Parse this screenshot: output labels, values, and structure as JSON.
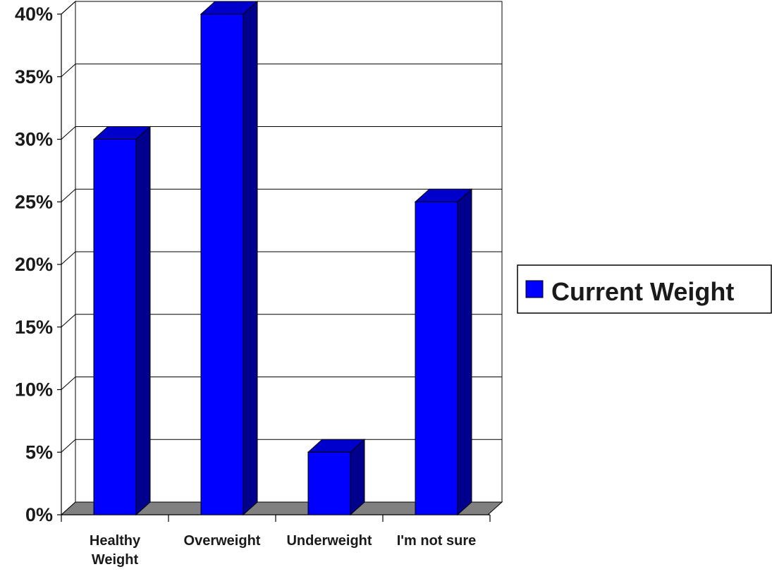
{
  "chart_data": {
    "type": "bar",
    "title": "",
    "xlabel": "",
    "ylabel": "",
    "categories": [
      "Healthy Weight",
      "Overweight",
      "Underweight",
      "I'm not sure"
    ],
    "category_lines": [
      [
        "Healthy",
        "Weight"
      ],
      [
        "Overweight"
      ],
      [
        "Underweight"
      ],
      [
        "I'm not sure"
      ]
    ],
    "series": [
      {
        "name": "Current Weight",
        "values": [
          30,
          40,
          5,
          25
        ]
      }
    ],
    "ylim": [
      0,
      40
    ],
    "yticks": [
      0,
      5,
      10,
      15,
      20,
      25,
      30,
      35,
      40
    ],
    "ytick_labels": [
      "0%",
      "5%",
      "10%",
      "15%",
      "20%",
      "25%",
      "30%",
      "35%",
      "40%"
    ],
    "grid": true,
    "legend_position": "right",
    "three_d": true,
    "colors": {
      "bar_front": "#0000ff",
      "bar_side": "#00008c",
      "bar_top": "#0000cc",
      "floor": "#808080",
      "wall": "#ffffff",
      "grid": "#000000",
      "legend_swatch": "#0000ff"
    }
  }
}
